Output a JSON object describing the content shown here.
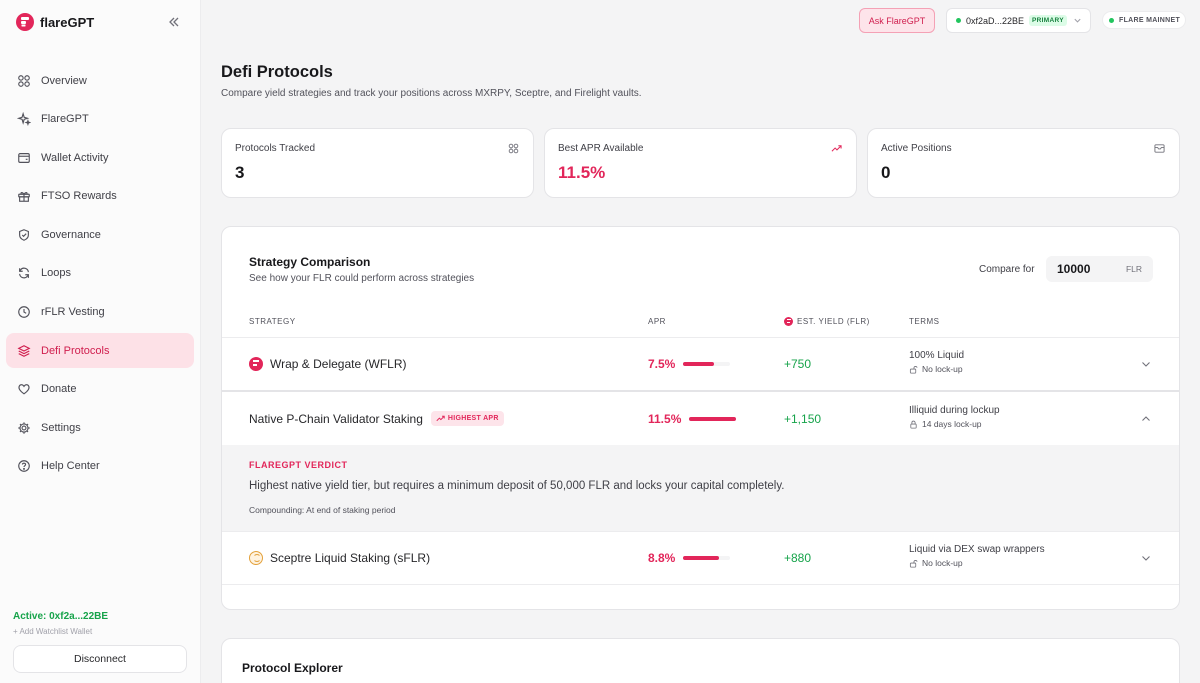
{
  "brand": {
    "name": "flareGPT",
    "accent": "#e2265a"
  },
  "sidebar": {
    "items": [
      {
        "label": "Overview",
        "icon": "grid-icon"
      },
      {
        "label": "FlareGPT",
        "icon": "sparkles-icon"
      },
      {
        "label": "Wallet Activity",
        "icon": "wallet-icon"
      },
      {
        "label": "FTSO Rewards",
        "icon": "gift-icon"
      },
      {
        "label": "Governance",
        "icon": "shield-icon"
      },
      {
        "label": "Loops",
        "icon": "refresh-icon"
      },
      {
        "label": "rFLR Vesting",
        "icon": "clock-icon"
      },
      {
        "label": "Defi Protocols",
        "icon": "layers-icon",
        "active": true
      },
      {
        "label": "Donate",
        "icon": "heart-icon"
      },
      {
        "label": "Settings",
        "icon": "gear-icon"
      },
      {
        "label": "Help Center",
        "icon": "help-icon"
      }
    ],
    "active_wallet": "Active: 0xf2a...22BE",
    "add_watchlist": "+ Add Watchlist Wallet",
    "disconnect": "Disconnect"
  },
  "topbar": {
    "ask_button": "Ask FlareGPT",
    "wallet_address": "0xf2aD...22BE",
    "wallet_badge": "PRIMARY",
    "network": "FLARE MAINNET"
  },
  "page": {
    "title": "Defi Protocols",
    "subtitle": "Compare yield strategies and track your positions across MXRPY, Sceptre, and Firelight vaults."
  },
  "stats": [
    {
      "label": "Protocols Tracked",
      "value": "3",
      "icon": "grid-icon"
    },
    {
      "label": "Best APR Available",
      "value": "11.5%",
      "icon": "trending-up-icon"
    },
    {
      "label": "Active Positions",
      "value": "0",
      "icon": "inbox-icon"
    }
  ],
  "strategy": {
    "title": "Strategy Comparison",
    "subtitle": "See how your FLR could perform across strategies",
    "compare_label": "Compare for",
    "compare_value": "10000",
    "compare_unit": "FLR",
    "headers": {
      "strategy": "STRATEGY",
      "apr": "APR",
      "yield": "EST. YIELD (FLR)",
      "terms": "TERMS"
    },
    "rows": [
      {
        "name": "Wrap & Delegate (WFLR)",
        "logo": "flare",
        "apr": "7.5%",
        "apr_value": 7.5,
        "yield": "+750",
        "terms": "100% Liquid",
        "lock": "No lock-up",
        "lock_icon": "unlock-icon",
        "expanded": false
      },
      {
        "name": "Native P-Chain Validator Staking",
        "badge": "HIGHEST APR",
        "apr": "11.5%",
        "apr_value": 11.5,
        "yield": "+1,150",
        "terms": "Illiquid during lockup",
        "lock": "14 days lock-up",
        "lock_icon": "lock-icon",
        "expanded": true
      },
      {
        "name": "Sceptre Liquid Staking (sFLR)",
        "logo": "sceptre",
        "apr": "8.8%",
        "apr_value": 8.8,
        "yield": "+880",
        "terms": "Liquid via DEX swap wrappers",
        "lock": "No lock-up",
        "lock_icon": "unlock-icon",
        "expanded": false
      }
    ],
    "verdict": {
      "title": "FLAREGPT VERDICT",
      "text": "Highest native yield tier, but requires a minimum deposit of 50,000 FLR and locks your capital completely.",
      "note": "Compounding: At end of staking period"
    }
  },
  "explorer": {
    "title": "Protocol Explorer",
    "subtitle": ""
  }
}
